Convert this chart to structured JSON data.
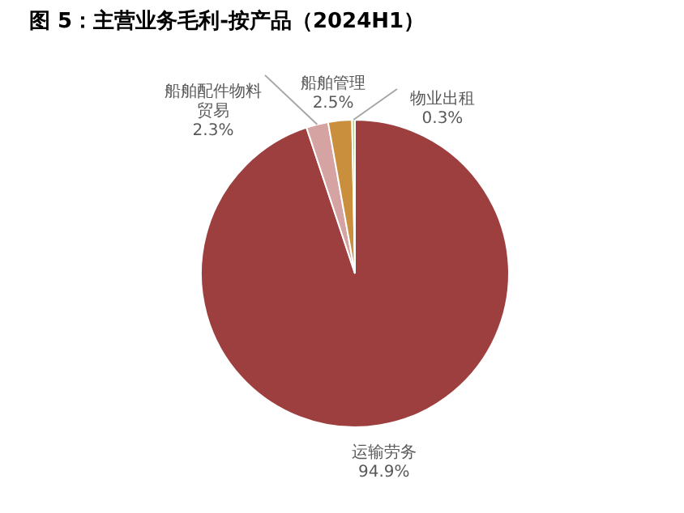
{
  "chart_data": {
    "type": "pie",
    "title": "图 5：主营业务毛利-按产品（2024H1）",
    "categories": [
      "运输劳务",
      "船舶配件物料贸易",
      "船舶管理",
      "物业出租"
    ],
    "values": [
      94.9,
      2.3,
      2.5,
      0.3
    ],
    "colors": [
      "#9e3f3f",
      "#d6a3a3",
      "#c98f3c",
      "#b9cc8e"
    ],
    "value_labels": [
      "94.9%",
      "2.3%",
      "2.5%",
      "0.3%"
    ],
    "legend": false
  }
}
